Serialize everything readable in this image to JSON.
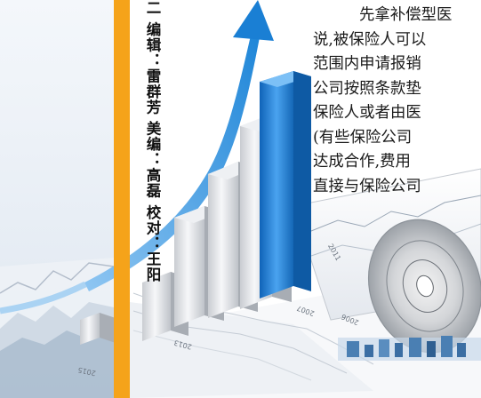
{
  "credits": {
    "text": "二 编辑：雷群芳 美编：高磊 校对：王阳"
  },
  "article": {
    "lines": [
      "先拿补偿型医",
      "说,被保险人可以",
      "范围内申请报销",
      "公司按照条款垫",
      "保险人或者由医",
      "(有些保险公司",
      "达成合作,费用",
      "直接与保险公司"
    ]
  },
  "illustration": {
    "year_labels": [
      "2015",
      "2013",
      "2007",
      "2006",
      "2011"
    ]
  }
}
